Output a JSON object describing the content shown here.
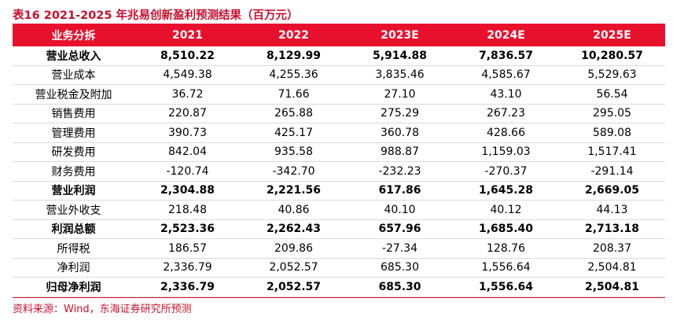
{
  "title": "表16  2021-2025 年兆易创新盈利预测结果（百万元）",
  "table": {
    "headers": [
      "业务分拆",
      "2021",
      "2022",
      "2023E",
      "2024E",
      "2025E"
    ],
    "rows": [
      {
        "label": "营业总收入",
        "bold": true,
        "values": [
          "8,510.22",
          "8,129.99",
          "5,914.88",
          "7,836.57",
          "10,280.57"
        ]
      },
      {
        "label": "营业成本",
        "bold": false,
        "values": [
          "4,549.38",
          "4,255.36",
          "3,835.46",
          "4,585.67",
          "5,529.63"
        ]
      },
      {
        "label": "营业税金及附加",
        "bold": false,
        "values": [
          "36.72",
          "71.66",
          "27.10",
          "43.10",
          "56.54"
        ]
      },
      {
        "label": "销售费用",
        "bold": false,
        "values": [
          "220.87",
          "265.88",
          "275.29",
          "267.23",
          "295.05"
        ]
      },
      {
        "label": "管理费用",
        "bold": false,
        "values": [
          "390.73",
          "425.17",
          "360.78",
          "428.66",
          "589.08"
        ]
      },
      {
        "label": "研发费用",
        "bold": false,
        "values": [
          "842.04",
          "935.58",
          "988.87",
          "1,159.03",
          "1,517.41"
        ]
      },
      {
        "label": "财务费用",
        "bold": false,
        "values": [
          "-120.74",
          "-342.70",
          "-232.23",
          "-270.37",
          "-291.14"
        ]
      },
      {
        "label": "营业利润",
        "bold": true,
        "values": [
          "2,304.88",
          "2,221.56",
          "617.86",
          "1,645.28",
          "2,669.05"
        ]
      },
      {
        "label": "营业外收支",
        "bold": false,
        "values": [
          "218.48",
          "40.86",
          "40.10",
          "40.12",
          "44.13"
        ]
      },
      {
        "label": "利润总额",
        "bold": true,
        "values": [
          "2,523.36",
          "2,262.43",
          "657.96",
          "1,685.40",
          "2,713.18"
        ]
      },
      {
        "label": "所得税",
        "bold": false,
        "values": [
          "186.57",
          "209.86",
          "-27.34",
          "128.76",
          "208.37"
        ]
      },
      {
        "label": "净利润",
        "bold": false,
        "values": [
          "2,336.79",
          "2,052.57",
          "685.30",
          "1,556.64",
          "2,504.81"
        ]
      },
      {
        "label": "归母净利润",
        "bold": true,
        "values": [
          "2,336.79",
          "2,052.57",
          "685.30",
          "1,556.64",
          "2,504.81"
        ]
      }
    ]
  },
  "source": "资料来源：Wind，东海证券研究所预测",
  "colors": {
    "accent": "#e8112d",
    "title": "#c8102e"
  }
}
